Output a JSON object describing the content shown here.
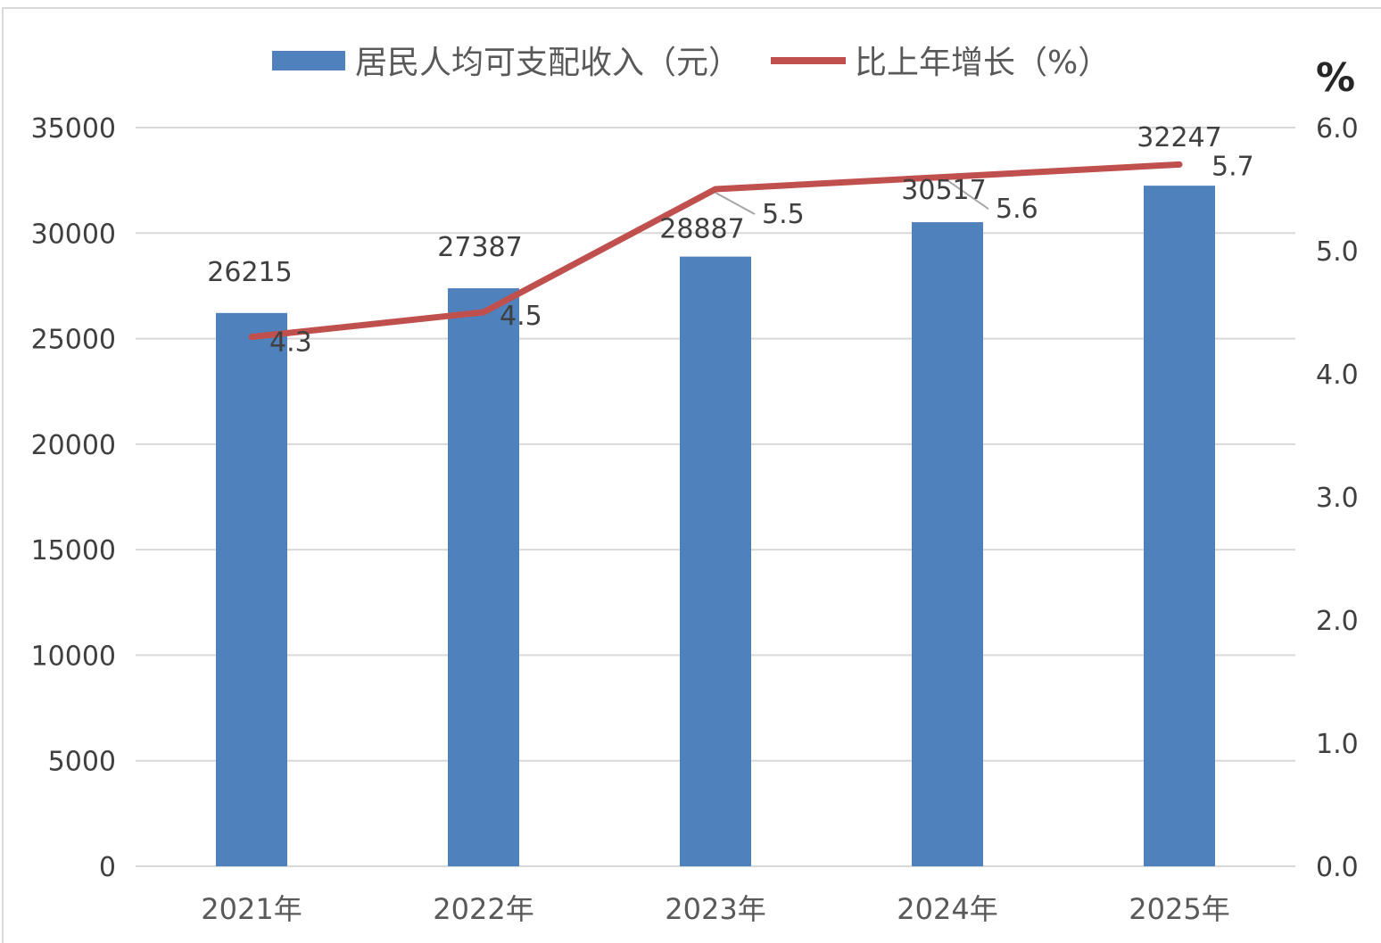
{
  "chart_data": {
    "type": "bar+line",
    "categories": [
      "2021年",
      "2022年",
      "2023年",
      "2024年",
      "2025年"
    ],
    "series": [
      {
        "name": "居民人均可支配收入（元）",
        "type": "bar",
        "axis": "left",
        "values": [
          26215,
          27387,
          28887,
          30517,
          32247
        ],
        "color": "#4f81bd"
      },
      {
        "name": "比上年增长（%）",
        "type": "line",
        "axis": "right",
        "values": [
          4.3,
          4.5,
          5.5,
          5.6,
          5.7
        ],
        "color": "#c0504d"
      }
    ],
    "y_left": {
      "min": 0,
      "max": 35000,
      "step": 5000,
      "ticks": [
        "0",
        "5000",
        "10000",
        "15000",
        "20000",
        "25000",
        "30000",
        "35000"
      ]
    },
    "y_right": {
      "min": 0,
      "max": 6,
      "step": 1,
      "unit": "%",
      "ticks": [
        "0.0",
        "1.0",
        "2.0",
        "3.0",
        "4.0",
        "5.0",
        "6.0"
      ]
    },
    "bar_labels": [
      "26215",
      "27387",
      "28887",
      "30517",
      "32247"
    ],
    "line_labels": [
      "4.3",
      "4.5",
      "5.5",
      "5.6",
      "5.7"
    ],
    "legend_position": "top",
    "grid": true,
    "gridline_color": "#d9d9d9"
  }
}
